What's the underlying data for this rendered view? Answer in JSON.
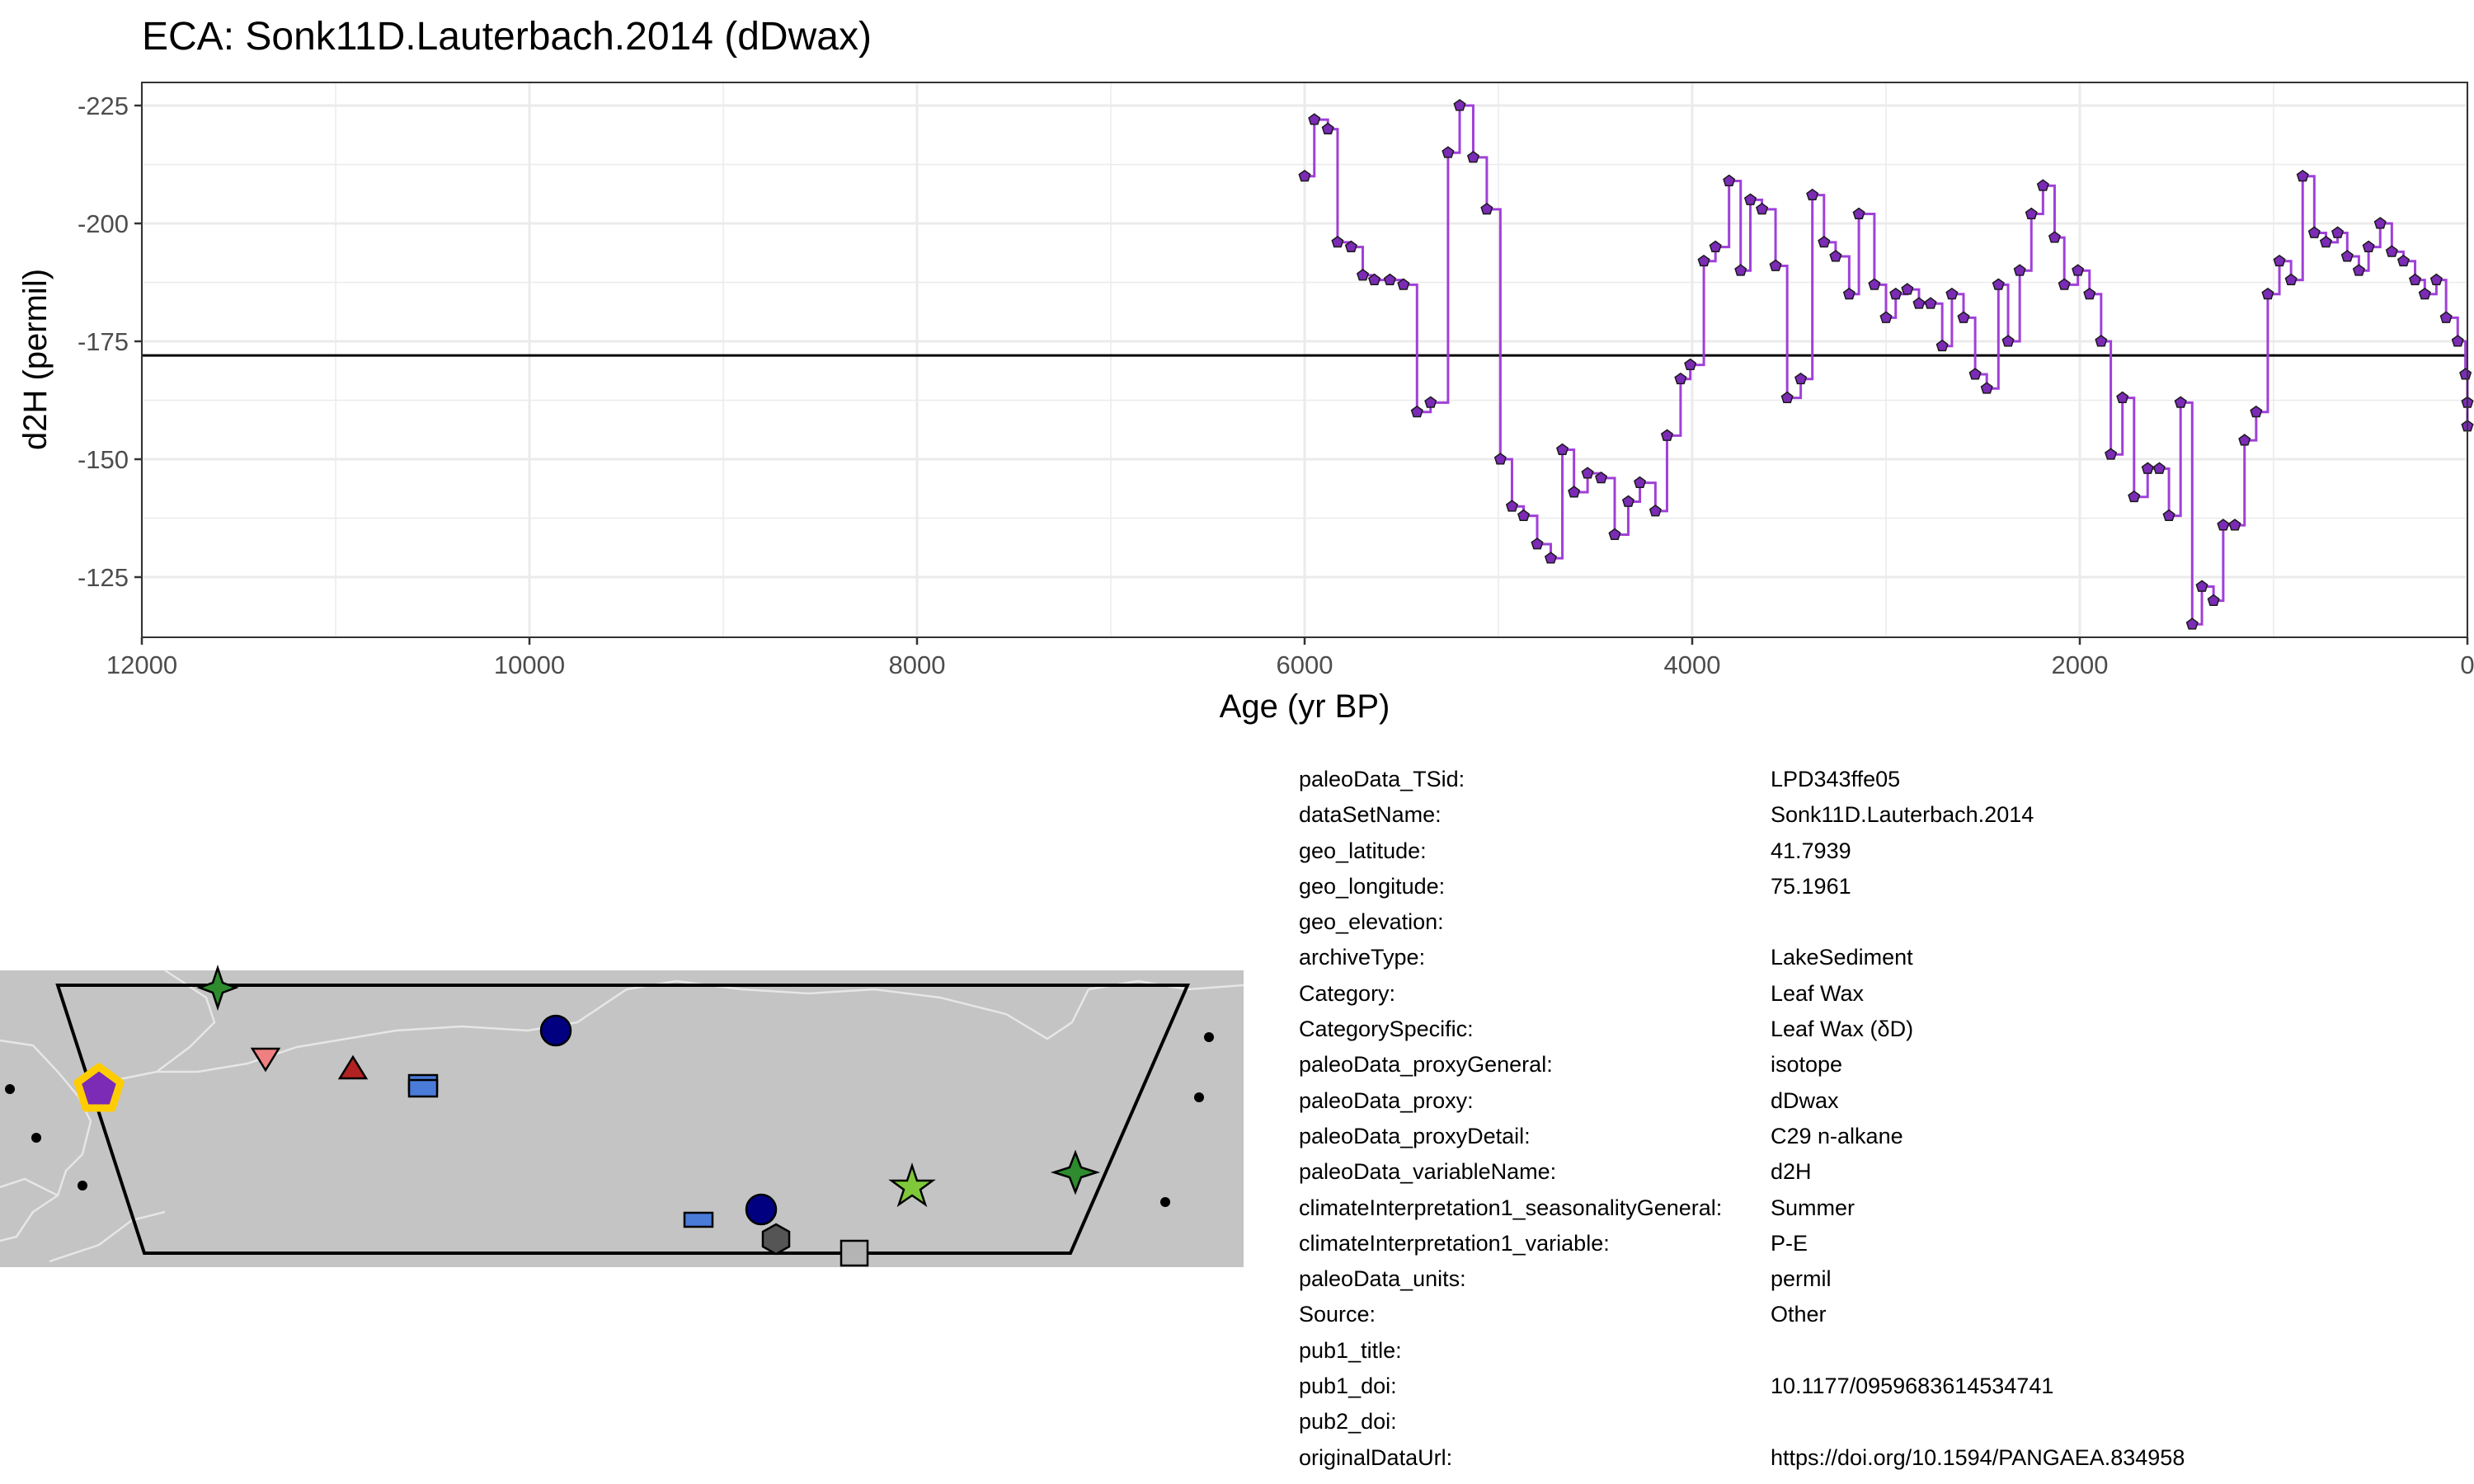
{
  "chart_data": {
    "type": "line",
    "title": "ECA: Sonk11D.Lauterbach.2014 (dDwax)",
    "xlabel": "Age (yr BP)",
    "ylabel": "d2H (permil)",
    "xlim": [
      12000,
      0
    ],
    "ylim": [
      -225,
      -125
    ],
    "x_reversed": true,
    "y_reversed": true,
    "x_ticks": [
      12000,
      10000,
      8000,
      6000,
      4000,
      2000,
      0
    ],
    "x_tick_labels": [
      "12000",
      "10000",
      "8000",
      "6000",
      "4000",
      "2000",
      "0"
    ],
    "y_ticks": [
      -225,
      -200,
      -175,
      -150,
      -125
    ],
    "y_tick_labels": [
      "-225",
      "-200",
      "-175",
      "-150",
      "-125"
    ],
    "reference_line": -172,
    "grid": true,
    "series_color": "#a040d8",
    "marker_color": "#7b2bb5",
    "series": [
      {
        "x": [
          6000,
          5950,
          5880,
          5830,
          5760,
          5700,
          5640,
          5560,
          5490,
          5420,
          5350,
          5260,
          5200,
          5130,
          5060,
          4990,
          4930,
          4870,
          4800,
          4730,
          4670,
          4610,
          4540,
          4470,
          4400,
          4330,
          4270,
          4190,
          4130,
          4060,
          4010,
          3940,
          3880,
          3810,
          3750,
          3700,
          3640,
          3570,
          3510,
          3440,
          3380,
          3320,
          3260,
          3190,
          3140,
          3060,
          3000,
          2950,
          2890,
          2830,
          2770,
          2710,
          2660,
          2600,
          2540,
          2480,
          2420,
          2370,
          2310,
          2250,
          2190,
          2130,
          2080,
          2010,
          1950,
          1890,
          1840,
          1780,
          1720,
          1650,
          1590,
          1540,
          1480,
          1420,
          1370,
          1310,
          1260,
          1200,
          1150,
          1090,
          1030,
          970,
          910,
          850,
          790,
          730,
          670,
          620,
          560,
          510,
          450,
          390,
          330,
          270,
          220,
          160,
          110,
          50,
          10,
          0,
          0
        ],
        "y": [
          -210,
          -222,
          -220,
          -196,
          -195,
          -189,
          -188,
          -188,
          -187,
          -160,
          -162,
          -215,
          -225,
          -214,
          -203,
          -150,
          -140,
          -138,
          -132,
          -129,
          -152,
          -143,
          -147,
          -146,
          -134,
          -141,
          -145,
          -139,
          -155,
          -167,
          -170,
          -192,
          -195,
          -209,
          -190,
          -205,
          -203,
          -191,
          -163,
          -167,
          -206,
          -196,
          -193,
          -185,
          -202,
          -187,
          -180,
          -185,
          -186,
          -183,
          -183,
          -174,
          -185,
          -180,
          -168,
          -165,
          -187,
          -175,
          -190,
          -202,
          -208,
          -197,
          -187,
          -190,
          -185,
          -175,
          -151,
          -163,
          -142,
          -148,
          -148,
          -138,
          -162,
          -115,
          -123,
          -120,
          -136,
          -136,
          -154,
          -160,
          -185,
          -192,
          -188,
          -210,
          -198,
          -196,
          -198,
          -193,
          -190,
          -195,
          -200,
          -194,
          -192,
          -188,
          -185,
          -188,
          -180,
          -175,
          -168,
          -162,
          -157
        ]
      }
    ]
  },
  "map": {
    "background_color": "#c4c4c4",
    "highlight_marker_color": "#ffcc00",
    "highlight_fill_color": "#7b2bb5",
    "markers": [
      {
        "shape": "star4",
        "color": "#2e8b2e"
      },
      {
        "shape": "circle",
        "color": "#000080"
      },
      {
        "shape": "triangle-down",
        "color": "#f08080"
      },
      {
        "shape": "triangle",
        "color": "#b22222"
      },
      {
        "shape": "rect-double",
        "color": "#4a7bd9"
      },
      {
        "shape": "star5",
        "color": "#7ec83a"
      },
      {
        "shape": "star4",
        "color": "#2e8b2e"
      },
      {
        "shape": "rect",
        "color": "#4a7bd9"
      },
      {
        "shape": "circle",
        "color": "#000080"
      },
      {
        "shape": "hexagon",
        "color": "#555555"
      },
      {
        "shape": "square",
        "color": "#b4b4b4"
      }
    ]
  },
  "metadata": [
    {
      "key": "paleoData_TSid:",
      "value": "LPD343ffe05"
    },
    {
      "key": "dataSetName:",
      "value": "Sonk11D.Lauterbach.2014"
    },
    {
      "key": "geo_latitude:",
      "value": "41.7939"
    },
    {
      "key": "geo_longitude:",
      "value": "75.1961"
    },
    {
      "key": "geo_elevation:",
      "value": ""
    },
    {
      "key": "archiveType:",
      "value": "LakeSediment"
    },
    {
      "key": "Category:",
      "value": "Leaf Wax"
    },
    {
      "key": "CategorySpecific:",
      "value": "Leaf Wax (δD)"
    },
    {
      "key": "paleoData_proxyGeneral:",
      "value": "isotope"
    },
    {
      "key": "paleoData_proxy:",
      "value": "dDwax"
    },
    {
      "key": "paleoData_proxyDetail:",
      "value": "C29 n-alkane"
    },
    {
      "key": "paleoData_variableName:",
      "value": "d2H"
    },
    {
      "key": "climateInterpretation1_seasonalityGeneral:",
      "value": "Summer"
    },
    {
      "key": "climateInterpretation1_variable:",
      "value": "P-E"
    },
    {
      "key": "paleoData_units:",
      "value": "permil"
    },
    {
      "key": "Source:",
      "value": "Other"
    },
    {
      "key": "pub1_title:",
      "value": ""
    },
    {
      "key": "pub1_doi:",
      "value": "10.1177/0959683614534741"
    },
    {
      "key": "pub2_doi:",
      "value": ""
    },
    {
      "key": "originalDataUrl:",
      "value": "https://doi.org/10.1594/PANGAEA.834958"
    }
  ]
}
